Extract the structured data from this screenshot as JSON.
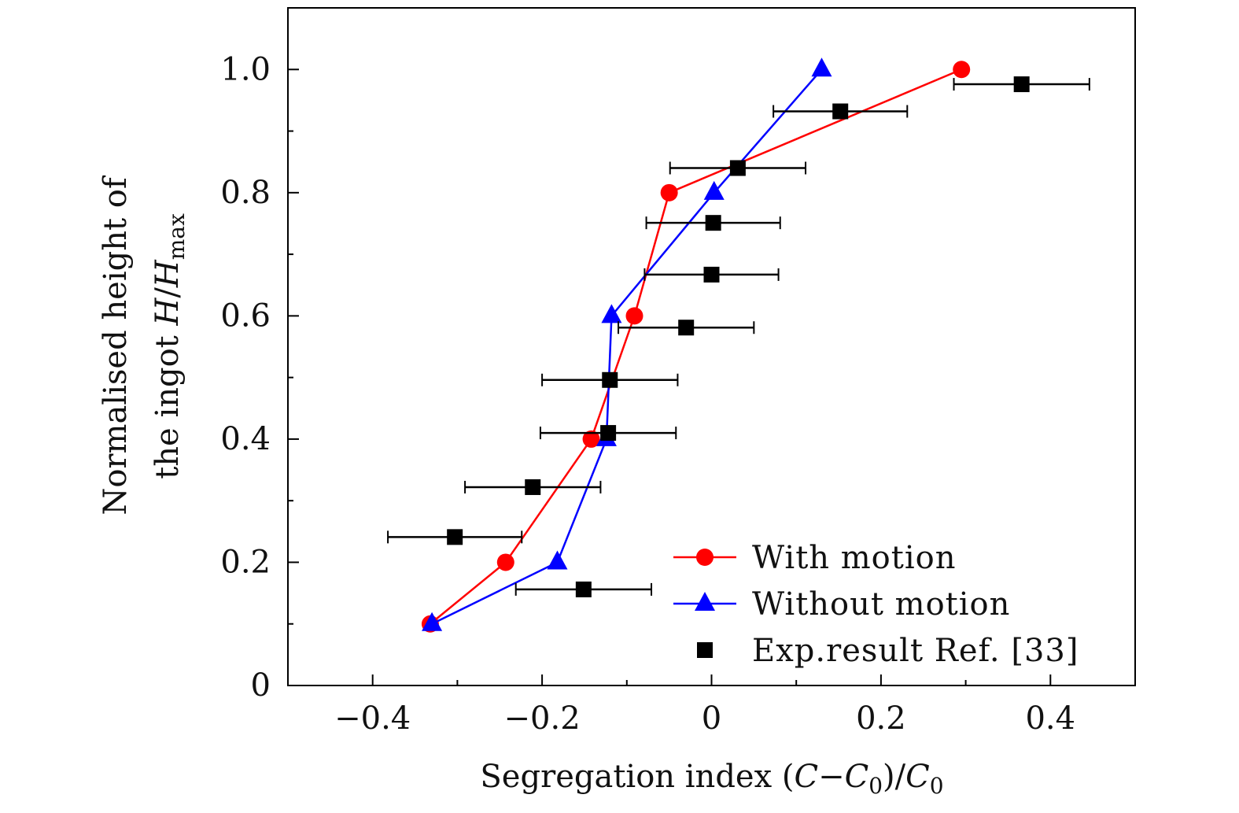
{
  "chart_data": {
    "type": "line",
    "title": "",
    "xlabel": {
      "main": "Segregation index ",
      "expr_open": "(",
      "c": "C",
      "minus": "−",
      "c0": "C",
      "sub0": "0",
      "close": ")/",
      "c0b": "C",
      "sub0b": "0"
    },
    "ylabel": {
      "line1": "Normalised height of",
      "line2_text": "the ingot ",
      "h": "H",
      "slash": "/",
      "hmax": "H",
      "sub_max": "max"
    },
    "xlim": [
      -0.5,
      0.5
    ],
    "ylim": [
      0,
      1.1
    ],
    "xticks": [
      -0.4,
      -0.2,
      0,
      0.2,
      0.4
    ],
    "xtick_labels": [
      "−0.4",
      "−0.2",
      "0",
      "0.2",
      "0.4"
    ],
    "yticks": [
      0,
      0.2,
      0.4,
      0.6,
      0.8,
      1.0
    ],
    "ytick_labels": [
      "0",
      "0.2",
      "0.4",
      "0.6",
      "0.8",
      "1.0"
    ],
    "grid": false,
    "legend_position": "bottom-right",
    "series": [
      {
        "name": "With motion",
        "color": "#ff0000",
        "marker": "circle",
        "line": true,
        "x": [
          -0.332,
          -0.243,
          -0.142,
          -0.091,
          -0.05,
          0.295
        ],
        "y": [
          0.1,
          0.2,
          0.4,
          0.6,
          0.8,
          1.0
        ]
      },
      {
        "name": "Without motion",
        "color": "#0000ff",
        "marker": "triangle",
        "line": true,
        "x": [
          -0.33,
          -0.182,
          -0.124,
          -0.118,
          0.003,
          0.13
        ],
        "y": [
          0.1,
          0.2,
          0.4,
          0.6,
          0.8,
          1.0
        ]
      },
      {
        "name": "Exp.result Ref. [33]",
        "color": "#000000",
        "marker": "square",
        "line": false,
        "x": [
          -0.151,
          -0.303,
          -0.211,
          -0.122,
          -0.12,
          -0.03,
          0.0,
          0.002,
          0.031,
          0.152,
          0.366
        ],
        "y": [
          0.156,
          0.241,
          0.322,
          0.41,
          0.496,
          0.581,
          0.667,
          0.751,
          0.84,
          0.932,
          0.976
        ],
        "xerr": [
          0.08,
          0.079,
          0.08,
          0.08,
          0.08,
          0.08,
          0.079,
          0.079,
          0.08,
          0.079,
          0.08
        ]
      }
    ]
  }
}
